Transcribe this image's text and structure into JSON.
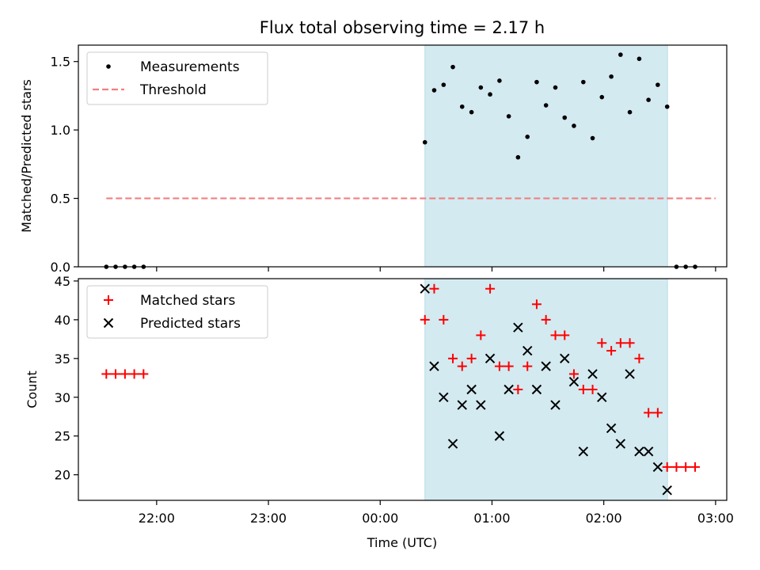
{
  "chart_data": {
    "title": "Flux total observing time = 2.17 h",
    "xlabel": "Time (UTC)",
    "x_ticks": [
      "22:00",
      "23:00",
      "00:00",
      "01:00",
      "02:00",
      "03:00"
    ],
    "x_ticks_hours": [
      22,
      23,
      24,
      25,
      26,
      27
    ],
    "xlim_hours": [
      21.3,
      27.1
    ],
    "shaded_interval_hours": [
      24.4,
      26.57
    ],
    "shade_color": "#d3eaf1",
    "panels": [
      {
        "type": "scatter",
        "ylabel": "Matched/Predicted stars",
        "ylim": [
          0,
          1.62
        ],
        "y_ticks": [
          "0.0",
          "0.5",
          "1.0",
          "1.5"
        ],
        "y_tick_values": [
          0,
          0.5,
          1.0,
          1.5
        ],
        "legend": [
          "Measurements",
          "Threshold"
        ],
        "legend_position": "upper left",
        "threshold": {
          "name": "Threshold",
          "value": 0.5,
          "x_range_hours": [
            21.55,
            27.0
          ],
          "color": "#f08080"
        },
        "series": [
          {
            "name": "Measurements",
            "color": "#000000",
            "marker": "dot",
            "points": [
              [
                21.55,
                0
              ],
              [
                21.633,
                0
              ],
              [
                21.717,
                0
              ],
              [
                21.8,
                0
              ],
              [
                21.883,
                0
              ],
              [
                24.4,
                0.91
              ],
              [
                24.483,
                1.29
              ],
              [
                24.567,
                1.33
              ],
              [
                24.65,
                1.46
              ],
              [
                24.733,
                1.17
              ],
              [
                24.817,
                1.13
              ],
              [
                24.9,
                1.31
              ],
              [
                24.983,
                1.26
              ],
              [
                25.067,
                1.36
              ],
              [
                25.15,
                1.1
              ],
              [
                25.233,
                0.8
              ],
              [
                25.317,
                0.95
              ],
              [
                25.4,
                1.35
              ],
              [
                25.483,
                1.18
              ],
              [
                25.567,
                1.31
              ],
              [
                25.65,
                1.09
              ],
              [
                25.733,
                1.03
              ],
              [
                25.817,
                1.35
              ],
              [
                25.9,
                0.94
              ],
              [
                25.983,
                1.24
              ],
              [
                26.067,
                1.39
              ],
              [
                26.15,
                1.55
              ],
              [
                26.233,
                1.13
              ],
              [
                26.317,
                1.52
              ],
              [
                26.4,
                1.22
              ],
              [
                26.483,
                1.33
              ],
              [
                26.567,
                1.17
              ],
              [
                26.65,
                0
              ],
              [
                26.733,
                0
              ],
              [
                26.817,
                0
              ]
            ]
          }
        ]
      },
      {
        "type": "scatter",
        "ylabel": "Count",
        "ylim": [
          16.7,
          45.3
        ],
        "y_ticks": [
          "20",
          "25",
          "30",
          "35",
          "40",
          "45"
        ],
        "y_tick_values": [
          20,
          25,
          30,
          35,
          40,
          45
        ],
        "legend": [
          "Matched stars",
          "Predicted stars"
        ],
        "legend_position": "upper left",
        "series": [
          {
            "name": "Matched stars",
            "color": "#ff0000",
            "marker": "plus",
            "points": [
              [
                21.55,
                33
              ],
              [
                21.633,
                33
              ],
              [
                21.717,
                33
              ],
              [
                21.8,
                33
              ],
              [
                21.883,
                33
              ],
              [
                24.4,
                40
              ],
              [
                24.483,
                44
              ],
              [
                24.567,
                40
              ],
              [
                24.65,
                35
              ],
              [
                24.733,
                34
              ],
              [
                24.817,
                35
              ],
              [
                24.9,
                38
              ],
              [
                24.983,
                44
              ],
              [
                25.067,
                34
              ],
              [
                25.15,
                34
              ],
              [
                25.233,
                31
              ],
              [
                25.317,
                34
              ],
              [
                25.4,
                42
              ],
              [
                25.483,
                40
              ],
              [
                25.567,
                38
              ],
              [
                25.65,
                38
              ],
              [
                25.733,
                33
              ],
              [
                25.817,
                31
              ],
              [
                25.9,
                31
              ],
              [
                25.983,
                37
              ],
              [
                26.067,
                36
              ],
              [
                26.15,
                37
              ],
              [
                26.233,
                37
              ],
              [
                26.317,
                35
              ],
              [
                26.4,
                28
              ],
              [
                26.483,
                28
              ],
              [
                26.567,
                21
              ],
              [
                26.65,
                21
              ],
              [
                26.733,
                21
              ],
              [
                26.817,
                21
              ]
            ]
          },
          {
            "name": "Predicted stars",
            "color": "#000000",
            "marker": "x",
            "points": [
              [
                24.4,
                44
              ],
              [
                24.483,
                34
              ],
              [
                24.567,
                30
              ],
              [
                24.65,
                24
              ],
              [
                24.733,
                29
              ],
              [
                24.817,
                31
              ],
              [
                24.9,
                29
              ],
              [
                24.983,
                35
              ],
              [
                25.067,
                25
              ],
              [
                25.15,
                31
              ],
              [
                25.233,
                39
              ],
              [
                25.317,
                36
              ],
              [
                25.4,
                31
              ],
              [
                25.483,
                34
              ],
              [
                25.567,
                29
              ],
              [
                25.65,
                35
              ],
              [
                25.733,
                32
              ],
              [
                25.817,
                23
              ],
              [
                25.9,
                33
              ],
              [
                25.983,
                30
              ],
              [
                26.067,
                26
              ],
              [
                26.15,
                24
              ],
              [
                26.233,
                33
              ],
              [
                26.317,
                23
              ],
              [
                26.4,
                23
              ],
              [
                26.483,
                21
              ],
              [
                26.567,
                18
              ]
            ]
          }
        ]
      }
    ]
  }
}
